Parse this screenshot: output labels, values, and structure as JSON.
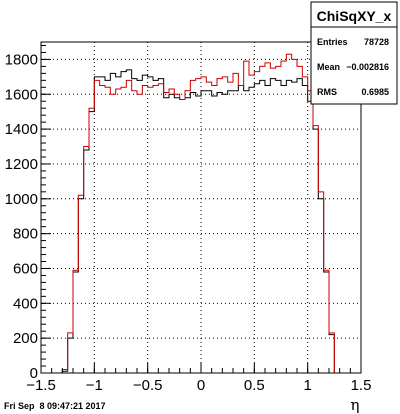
{
  "chart_data": {
    "type": "histogram",
    "title": "",
    "xlabel": "η",
    "ylabel": "",
    "xlim": [
      -1.5,
      1.5
    ],
    "ylim": [
      0,
      1900
    ],
    "x_ticks": [
      "−1.5",
      "−1",
      "−0.5",
      "0",
      "0.5",
      "1",
      "1.5"
    ],
    "y_ticks": [
      "0",
      "200",
      "400",
      "600",
      "800",
      "1000",
      "1200",
      "1400",
      "1600",
      "1800"
    ],
    "grid": true,
    "legend": "none",
    "bin_edges_start": -1.5,
    "bin_width": 0.05,
    "series": [
      {
        "color": "#000000",
        "values": [
          0,
          0,
          0,
          0,
          10,
          200,
          580,
          1000,
          1280,
          1500,
          1700,
          1700,
          1680,
          1720,
          1700,
          1730,
          1740,
          1690,
          1680,
          1710,
          1700,
          1680,
          1690,
          1580,
          1600,
          1580,
          1570,
          1580,
          1610,
          1590,
          1620,
          1620,
          1590,
          1610,
          1600,
          1620,
          1620,
          1650,
          1620,
          1640,
          1660,
          1680,
          1650,
          1690,
          1680,
          1650,
          1680,
          1670,
          1690,
          1650,
          1560,
          1400,
          1000,
          580,
          220,
          0,
          0,
          0,
          0,
          0
        ]
      },
      {
        "color": "#cc0000",
        "values": [
          0,
          0,
          0,
          0,
          20,
          230,
          590,
          1020,
          1300,
          1520,
          1680,
          1650,
          1640,
          1600,
          1630,
          1640,
          1680,
          1620,
          1600,
          1650,
          1640,
          1650,
          1660,
          1610,
          1630,
          1600,
          1570,
          1620,
          1680,
          1690,
          1700,
          1670,
          1650,
          1690,
          1700,
          1670,
          1720,
          1650,
          1790,
          1710,
          1730,
          1760,
          1780,
          1750,
          1760,
          1790,
          1830,
          1800,
          1760,
          1700,
          1620,
          1420,
          1040,
          590,
          230,
          0,
          0,
          0,
          0,
          0
        ]
      }
    ]
  },
  "stats_box": {
    "title": "ChiSqXY_x",
    "entries_label": "Entries",
    "entries_value": "78728",
    "mean_label": "Mean",
    "mean_value": "−0.002816",
    "rms_label": "RMS",
    "rms_value": "0.6985"
  },
  "timestamp": "Fri Sep  8 09:47:21 2017"
}
